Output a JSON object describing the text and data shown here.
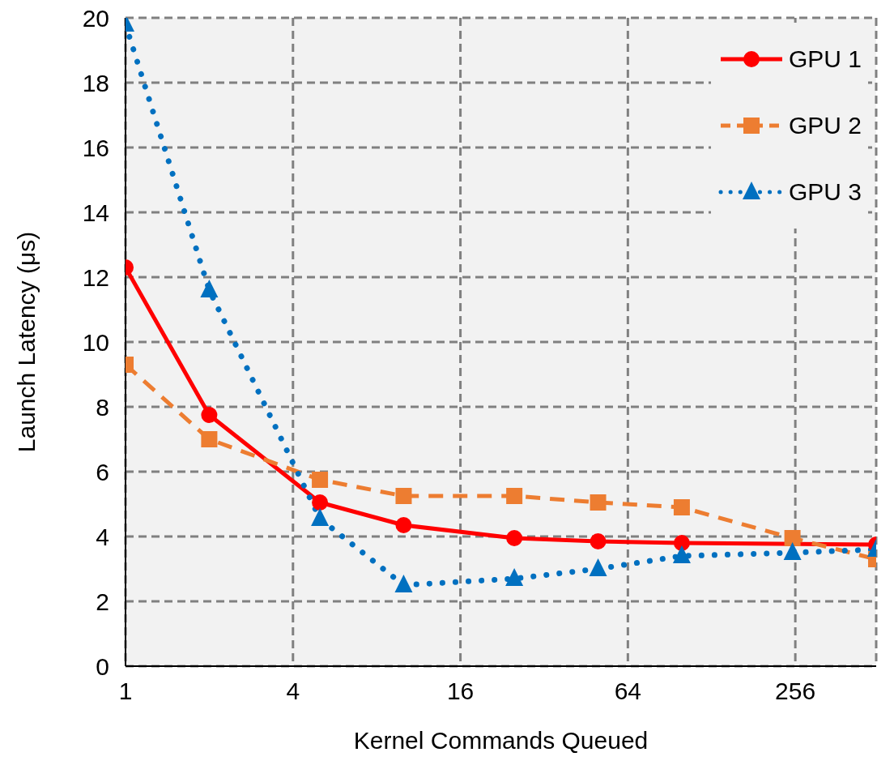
{
  "chart_data": {
    "type": "line",
    "xlabel": "Kernel Commands Queued",
    "ylabel": "Launch Latency (μs)",
    "x": [
      1,
      2,
      5,
      10,
      25,
      50,
      100,
      250,
      500
    ],
    "series": [
      {
        "name": "GPU 1",
        "color": "#ff0000",
        "marker": "circle",
        "line_style": "solid",
        "values": [
          12.3,
          7.75,
          5.05,
          4.35,
          3.95,
          3.85,
          3.8,
          null,
          3.75
        ]
      },
      {
        "name": "GPU 2",
        "color": "#ed7d31",
        "marker": "square",
        "line_style": "dashed",
        "values": [
          9.3,
          7.0,
          5.75,
          5.25,
          5.25,
          5.05,
          4.9,
          3.95,
          3.3
        ]
      },
      {
        "name": "GPU 3",
        "color": "#0070c0",
        "marker": "triangle",
        "line_style": "dotted",
        "values": [
          19.8,
          11.6,
          4.55,
          2.5,
          2.7,
          3.0,
          3.4,
          3.5,
          3.6
        ]
      }
    ],
    "log": "x",
    "xlim": [
      1,
      500
    ],
    "xticks": [
      1,
      4,
      16,
      64,
      256
    ],
    "ylim": [
      0,
      20
    ],
    "yticks": [
      0,
      2,
      4,
      6,
      8,
      10,
      12,
      14,
      16,
      18,
      20
    ],
    "grid": true,
    "legend": "top right"
  }
}
